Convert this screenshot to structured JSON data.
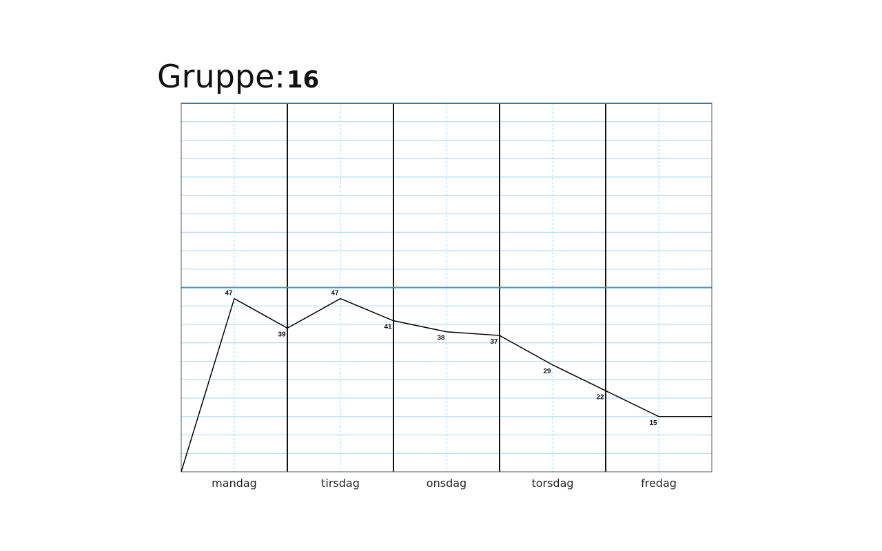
{
  "title": {
    "label": "Gruppe:",
    "value": "16"
  },
  "colors": {
    "accent_line": "#2e9bd6",
    "minor_grid": "#a9d4ee",
    "day_divider": "#111111",
    "data_line": "#000000",
    "frame": "#555555"
  },
  "chart_data": {
    "type": "line",
    "title": "Gruppe:16",
    "xlabel": "",
    "ylabel": "",
    "categories": [
      "mandag",
      "tirsdag",
      "onsdag",
      "torsdag",
      "fredag"
    ],
    "ylim": [
      0,
      100
    ],
    "reference_lines": [
      50,
      100
    ],
    "grid": true,
    "series": [
      {
        "name": "",
        "points": [
          {
            "x": 0.0,
            "y": 0
          },
          {
            "x": 0.5,
            "y": 47,
            "label": "47"
          },
          {
            "x": 1.0,
            "y": 39,
            "label": "39"
          },
          {
            "x": 1.5,
            "y": 47,
            "label": "47"
          },
          {
            "x": 2.0,
            "y": 41,
            "label": "41"
          },
          {
            "x": 2.5,
            "y": 38,
            "label": "38"
          },
          {
            "x": 3.0,
            "y": 37,
            "label": "37"
          },
          {
            "x": 3.5,
            "y": 29,
            "label": "29"
          },
          {
            "x": 4.0,
            "y": 22,
            "label": "22"
          },
          {
            "x": 4.5,
            "y": 15,
            "label": "15"
          },
          {
            "x": 5.0,
            "y": 15
          }
        ]
      }
    ]
  }
}
